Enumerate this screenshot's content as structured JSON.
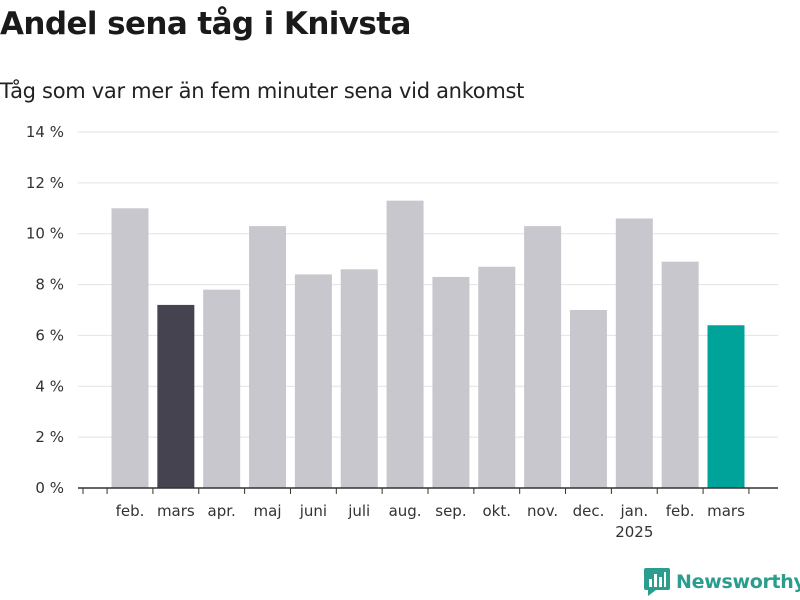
{
  "title": "Andel sena tåg i Knivsta",
  "subtitle": "Tåg som var mer än fem minuter sena vid ankomst",
  "logo": {
    "text": "Newsworthy",
    "icon": "bar-chart-speech-icon",
    "color": "#2a9d8f"
  },
  "colors": {
    "default": "#c8c7cd",
    "highlight_prev": "#45434f",
    "highlight_current": "#00a399",
    "grid": "#e2e2e2",
    "axis": "#333333"
  },
  "chart_data": {
    "type": "bar",
    "title": "Andel sena tåg i Knivsta",
    "subtitle": "Tåg som var mer än fem minuter sena vid ankomst",
    "xlabel": "",
    "ylabel": "",
    "ylim": [
      0,
      14
    ],
    "y_ticks": [
      0,
      2,
      4,
      6,
      8,
      10,
      12,
      14
    ],
    "y_tick_labels": [
      "0 %",
      "2 %",
      "4 %",
      "6 %",
      "8 %",
      "10 %",
      "12 %",
      "14 %"
    ],
    "grid": true,
    "categories": [
      "feb.",
      "mars",
      "apr.",
      "maj",
      "juni",
      "juli",
      "aug.",
      "sep.",
      "okt.",
      "nov.",
      "dec.",
      "jan.",
      "feb.",
      "mars"
    ],
    "year_labels": [
      {
        "index": 11,
        "text": "2025"
      }
    ],
    "values": [
      11.0,
      7.2,
      7.8,
      10.3,
      8.4,
      8.6,
      11.3,
      8.3,
      8.7,
      10.3,
      7.0,
      10.6,
      8.9,
      6.4
    ],
    "highlight": [
      {
        "index": 1,
        "color": "#45434f"
      },
      {
        "index": 13,
        "color": "#00a399"
      }
    ]
  }
}
